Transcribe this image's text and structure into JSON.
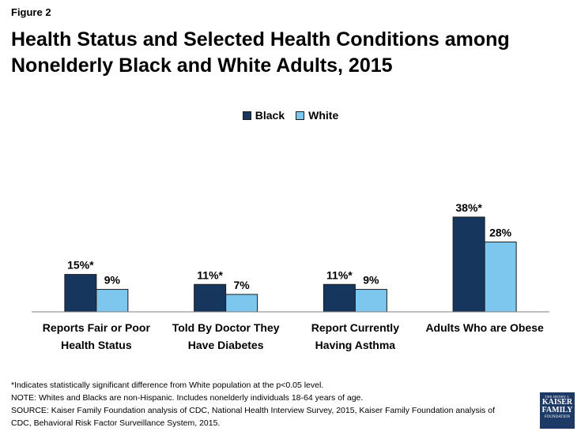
{
  "figure_label": "Figure 2",
  "title": "Health Status and Selected Health Conditions among Nonelderly Black and White Adults, 2015",
  "colors": {
    "black": "#17365d",
    "white": "#7dc6ee",
    "axis": "#808080"
  },
  "chart_data": {
    "type": "bar",
    "categories": [
      [
        "Reports Fair or Poor",
        "Health Status"
      ],
      [
        "Told By Doctor They",
        "Have Diabetes"
      ],
      [
        "Report Currently",
        "Having Asthma"
      ],
      [
        "Adults Who are Obese"
      ]
    ],
    "series": [
      {
        "name": "Black",
        "values": [
          15,
          11,
          11,
          38
        ],
        "labels": [
          "15%*",
          "11%*",
          "11%*",
          "38%*"
        ]
      },
      {
        "name": "White",
        "values": [
          9,
          7,
          9,
          28
        ],
        "labels": [
          "9%",
          "7%",
          "9%",
          "28%"
        ]
      }
    ],
    "ylim": [
      0,
      44
    ],
    "legend_position": "top-center",
    "grid": false
  },
  "notes": [
    "*Indicates statistically significant difference from White population at the p<0.05 level.",
    "NOTE: Whites and Blacks are non-Hispanic. Includes nonelderly individuals 18-64 years of age.",
    "SOURCE: Kaiser Family Foundation analysis of CDC, National Health Interview Survey, 2015, Kaiser Family Foundation analysis of",
    "CDC, Behavioral Risk Factor Surveillance System, 2015."
  ],
  "logo": {
    "line1": "THE HENRY J.",
    "line2": "KAISER",
    "line3": "FAMILY",
    "line4": "FOUNDATION"
  }
}
